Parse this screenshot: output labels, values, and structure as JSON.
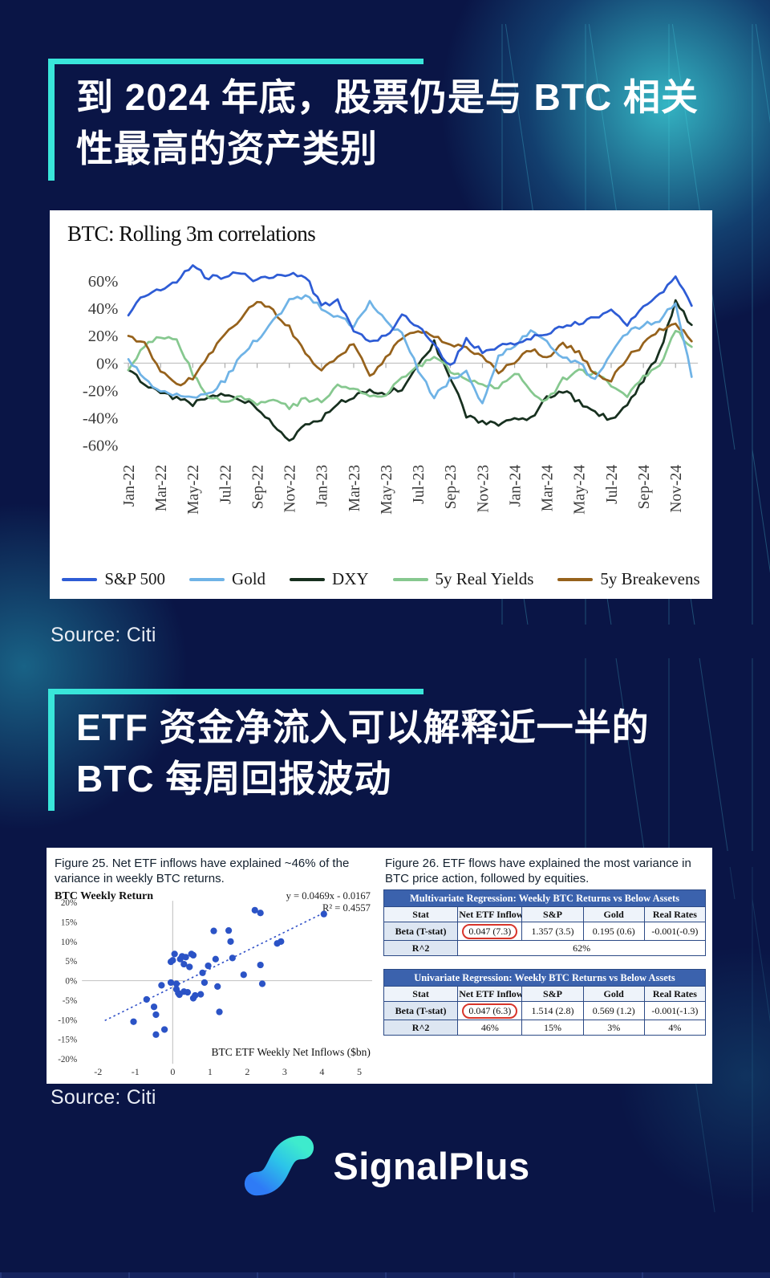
{
  "page": {
    "background": "#0A1546",
    "accent": "#39E6DA"
  },
  "section1": {
    "title_lines": [
      "到 2024 年底，股票仍是与 BTC 相关",
      "性最高的资产类别"
    ],
    "source": "Source: Citi"
  },
  "section2": {
    "title_lines": [
      "ETF 资金净流入可以解释近一半的",
      "BTC 每周回报波动"
    ],
    "source": "Source: Citi"
  },
  "footer": {
    "brand": "SignalPlus"
  },
  "chart_data": [
    {
      "id": "btc-rolling-correlations",
      "type": "line",
      "title": "BTC: Rolling 3m correlations",
      "unit": "percent",
      "grid": "zero-line-only",
      "legend_position": "bottom",
      "ylim": [
        -65,
        75
      ],
      "yticks": [
        "60%",
        "40%",
        "20%",
        "0%",
        "-20%",
        "-40%",
        "-60%"
      ],
      "ytick_values": [
        60,
        40,
        20,
        0,
        -20,
        -40,
        -60
      ],
      "x_start": "Jan-22",
      "x_end": "Dec-24",
      "x_sampling": "monthly",
      "x_tick_labels": [
        "Jan-22",
        "Mar-22",
        "May-22",
        "Jul-22",
        "Sep-22",
        "Nov-22",
        "Jan-23",
        "Mar-23",
        "May-23",
        "Jul-23",
        "Sep-23",
        "Nov-23",
        "Jan-24",
        "Mar-24",
        "May-24",
        "Jul-24",
        "Sep-24",
        "Nov-24"
      ],
      "series": [
        {
          "name": "S&P 500",
          "color": "#2E5CD5",
          "values": [
            35,
            50,
            55,
            60,
            71,
            62,
            64,
            67,
            60,
            64,
            66,
            64,
            42,
            45,
            25,
            15,
            20,
            34,
            28,
            15,
            -3,
            18,
            8,
            12,
            15,
            18,
            22,
            26,
            30,
            33,
            38,
            28,
            42,
            50,
            63,
            42
          ]
        },
        {
          "name": "Gold",
          "color": "#6FB3E6",
          "values": [
            3,
            -12,
            -20,
            -23,
            -25,
            -22,
            -12,
            5,
            18,
            30,
            45,
            50,
            40,
            33,
            28,
            45,
            30,
            22,
            -5,
            -25,
            -12,
            -5,
            -30,
            5,
            12,
            25,
            15,
            5,
            0,
            -12,
            8,
            22,
            28,
            32,
            45,
            -10
          ]
        },
        {
          "name": "DXY",
          "color": "#17301F",
          "values": [
            -5,
            -15,
            -22,
            -26,
            -30,
            -25,
            -22,
            -26,
            -32,
            -45,
            -57,
            -45,
            -40,
            -30,
            -25,
            -20,
            -22,
            -18,
            0,
            15,
            -10,
            -38,
            -43,
            -45,
            -42,
            -40,
            -25,
            -20,
            -28,
            -35,
            -42,
            -30,
            -12,
            8,
            45,
            28
          ]
        },
        {
          "name": "5y Real Yields",
          "color": "#86C88F",
          "values": [
            -5,
            12,
            20,
            18,
            -8,
            -25,
            -28,
            -24,
            -30,
            -27,
            -33,
            -26,
            -28,
            -15,
            -20,
            -24,
            -22,
            -10,
            -2,
            5,
            -5,
            -12,
            -16,
            -18,
            -6,
            -20,
            -28,
            -12,
            -6,
            -8,
            -15,
            -25,
            -10,
            -2,
            25,
            12
          ]
        },
        {
          "name": "5y Breakevens",
          "color": "#96621C",
          "values": [
            20,
            14,
            -6,
            -16,
            -10,
            6,
            20,
            34,
            46,
            38,
            26,
            8,
            -6,
            4,
            14,
            -10,
            4,
            18,
            24,
            20,
            14,
            10,
            4,
            -6,
            0,
            10,
            4,
            14,
            8,
            -8,
            -12,
            4,
            14,
            24,
            30,
            16
          ]
        }
      ]
    },
    {
      "id": "etf-flows-vs-returns",
      "type": "scatter",
      "figure_caption": "Figure 25. Net ETF inflows have explained ~46% of the variance in weekly BTC returns.",
      "axis_title": "BTC Weekly Return",
      "equation": "y = 0.0469x - 0.0167",
      "r_squared": "R² = 0.4557",
      "xlabel": "BTC ETF Weekly Net Inflows ($bn)",
      "xticks": [
        -2,
        -1,
        0,
        1,
        2,
        3,
        4,
        5
      ],
      "yticks": [
        "20%",
        "15%",
        "10%",
        "5%",
        "0%",
        "-5%",
        "-10%",
        "-15%",
        "-20%"
      ],
      "ytick_values": [
        20,
        15,
        10,
        5,
        0,
        -5,
        -10,
        -15,
        -20
      ],
      "xlim": [
        -2.3,
        5.3
      ],
      "ylim": [
        -20,
        20
      ],
      "dot_color": "#2B53C6",
      "trend": {
        "slope": 0.0469,
        "intercept": -0.0167,
        "x_start": -1.82,
        "x_end": 4.12,
        "style": "dotted"
      },
      "points": [
        [
          -1.05,
          -10.5
        ],
        [
          -0.7,
          -4.8
        ],
        [
          -0.5,
          -6.7
        ],
        [
          -0.45,
          -8.7
        ],
        [
          -0.45,
          -13.8
        ],
        [
          -0.3,
          -1.2
        ],
        [
          -0.22,
          -12.5
        ],
        [
          -0.05,
          -0.5
        ],
        [
          -0.05,
          4.8
        ],
        [
          0,
          5.2
        ],
        [
          0.05,
          6.8
        ],
        [
          0.1,
          -0.8
        ],
        [
          0.1,
          -2.2
        ],
        [
          0.15,
          -3.2
        ],
        [
          0.18,
          -3.6
        ],
        [
          0.2,
          5.5
        ],
        [
          0.25,
          6.2
        ],
        [
          0.3,
          4.2
        ],
        [
          0.3,
          -2.8
        ],
        [
          0.35,
          6
        ],
        [
          0.4,
          -3
        ],
        [
          0.45,
          3.5
        ],
        [
          0.5,
          6.8
        ],
        [
          0.55,
          6.5
        ],
        [
          0.55,
          -4.5
        ],
        [
          0.6,
          -3.8
        ],
        [
          0.75,
          -3.5
        ],
        [
          0.8,
          2
        ],
        [
          0.85,
          -0.5
        ],
        [
          0.95,
          3.8
        ],
        [
          1.1,
          12.7
        ],
        [
          1.15,
          5.5
        ],
        [
          1.2,
          -1.5
        ],
        [
          1.25,
          -8
        ],
        [
          1.5,
          12.8
        ],
        [
          1.55,
          10
        ],
        [
          1.6,
          5.8
        ],
        [
          1.9,
          1.5
        ],
        [
          2.2,
          18
        ],
        [
          2.35,
          17.3
        ],
        [
          2.35,
          4
        ],
        [
          2.4,
          -0.8
        ],
        [
          2.8,
          9.5
        ],
        [
          2.9,
          10
        ],
        [
          4.05,
          17
        ]
      ]
    },
    {
      "id": "regression-tables",
      "type": "table",
      "figure_caption": "Figure 26. ETF flows have explained the most variance in BTC price action, followed by equities.",
      "highlight_color": "#D8352A",
      "title_bg": "#3B62AD",
      "header_bg": "#DDE6F2",
      "tables": [
        {
          "title": "Multivariate Regression: Weekly BTC Returns vs Below Assets",
          "columns": [
            "Stat",
            "Net ETF Inflows",
            "S&P",
            "Gold",
            "Real Rates"
          ],
          "rows": [
            {
              "label": "Beta (T-stat)",
              "cells": [
                "0.047 (7.3)",
                "1.357 (3.5)",
                "0.195 (0.6)",
                "-0.001(-0.9)"
              ],
              "highlight_cell": 0
            },
            {
              "label": "R^2",
              "cells": [
                "62%"
              ],
              "colspan": 4
            }
          ]
        },
        {
          "title": "Univariate Regression: Weekly BTC Returns vs Below Assets",
          "columns": [
            "Stat",
            "Net ETF Inflows",
            "S&P",
            "Gold",
            "Real Rates"
          ],
          "rows": [
            {
              "label": "Beta (T-stat)",
              "cells": [
                "0.047 (6.3)",
                "1.514 (2.8)",
                "0.569 (1.2)",
                "-0.001(-1.3)"
              ],
              "highlight_cell": 0
            },
            {
              "label": "R^2",
              "cells": [
                "46%",
                "15%",
                "3%",
                "4%"
              ]
            }
          ]
        }
      ]
    }
  ]
}
